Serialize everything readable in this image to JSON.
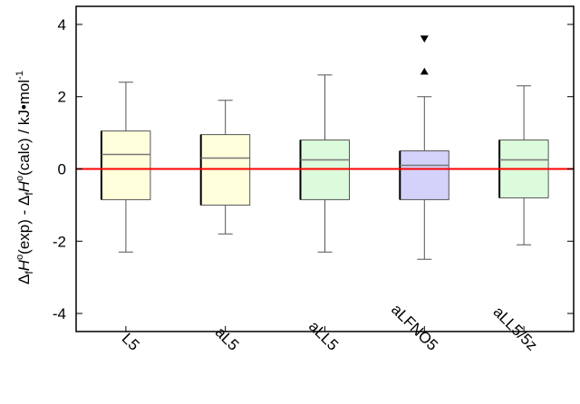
{
  "chart_data": {
    "type": "box",
    "ylabel": "Δ_f H°(exp) - Δ_f H°(calc) / kJ•mol⁻¹",
    "ylabel_parts": {
      "delta1": "Δ",
      "sub1": "f",
      "h1": "H",
      "deg1": "o",
      "exp": "(exp) - ",
      "delta2": "Δ",
      "sub2": "f",
      "h2": "H",
      "deg2": "o",
      "calc": "(calc) / kJ•mol",
      "sup": "-1"
    },
    "ylim": [
      -4.5,
      4.5
    ],
    "yticks": [
      -4,
      -2,
      0,
      2,
      4
    ],
    "grid": false,
    "reference_line": {
      "y": 0,
      "color": "#ff0000"
    },
    "categories": [
      "L5",
      "aL5",
      "aLL5",
      "aLFNO5",
      "aLL5/5z"
    ],
    "boxes": [
      {
        "category": "L5",
        "whisker_low": -2.3,
        "q1": -0.85,
        "median": 0.4,
        "q3": 1.05,
        "whisker_high": 2.4,
        "color": "#ffffdc"
      },
      {
        "category": "aL5",
        "whisker_low": -1.8,
        "q1": -1.0,
        "median": 0.3,
        "q3": 0.95,
        "whisker_high": 1.9,
        "color": "#ffffdc"
      },
      {
        "category": "aLL5",
        "whisker_low": -2.3,
        "q1": -0.85,
        "median": 0.25,
        "q3": 0.8,
        "whisker_high": 2.6,
        "color": "#dcfadc"
      },
      {
        "category": "aLFNO5",
        "whisker_low": -2.5,
        "q1": -0.85,
        "median": 0.1,
        "q3": 0.5,
        "whisker_high": 2.0,
        "color": "#d2d2fa",
        "outliers": [
          {
            "value": 3.6,
            "marker": "triangle-down"
          },
          {
            "value": 2.7,
            "marker": "triangle-up"
          }
        ]
      },
      {
        "category": "aLL5/5z",
        "whisker_low": -2.1,
        "q1": -0.8,
        "median": 0.25,
        "q3": 0.8,
        "whisker_high": 2.3,
        "color": "#dcfadc"
      }
    ]
  }
}
